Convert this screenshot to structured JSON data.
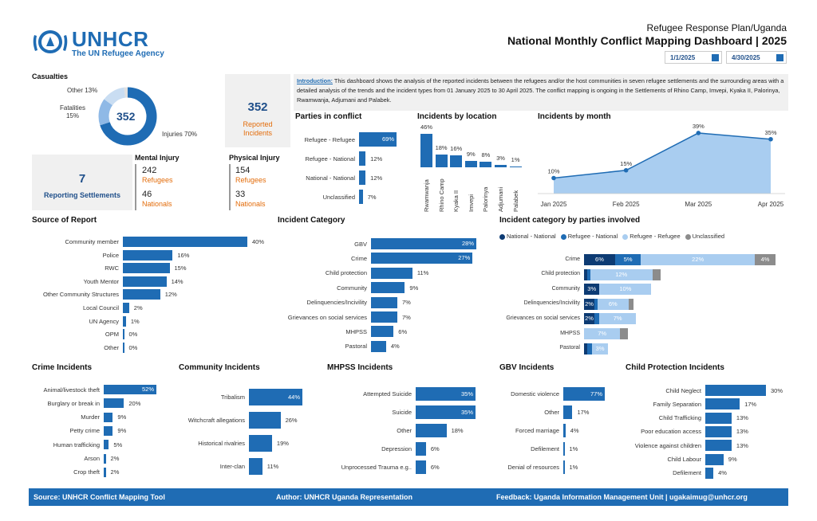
{
  "header": {
    "logo_name": "UNHCR",
    "logo_sub": "The UN Refugee Agency",
    "subtitle": "Refugee Response Plan/Uganda",
    "title": "National Monthly Conflict Mapping Dashboard | 2025",
    "date_start": "1/1/2025",
    "date_end": "4/30/2025"
  },
  "casualties": {
    "title": "Casualties",
    "total": "352",
    "slices": [
      {
        "label": "Injuries 70%",
        "value": 70,
        "color": "#1f6cb4"
      },
      {
        "label": "Fatalities 15%",
        "value": 15,
        "color": "#8fb9e6"
      },
      {
        "label": "Other 13%",
        "value": 13,
        "color": "#c9ddf2"
      }
    ],
    "reported_value": "352",
    "reported_label_1": "Reported",
    "reported_label_2": "Incidents",
    "settlements_value": "7",
    "settlements_label": "Reporting Settlements",
    "mental_title": "Mental Injury",
    "mental_ref_value": "242",
    "mental_ref_label": "Refugees",
    "mental_nat_value": "46",
    "mental_nat_label": "Nationals",
    "physical_title": "Physical Injury",
    "physical_ref_value": "154",
    "physical_ref_label": "Refugees",
    "physical_nat_value": "33",
    "physical_nat_label": "Nationals"
  },
  "intro": {
    "label": "Introduction:",
    "text": " This dashboard shows the analysis of the reported incidents between the refugees and/or the host communities in seven refugee settlements and the surrounding areas with a detailed analysis of the trends and the incident types from 01 January 2025 to 30 April 2025. The conflict mapping is ongoing in the Settlements of Rhino Camp, Imvepi, Kyaka II, Palorinya, Rwamwanja, Adjumani and Palabek."
  },
  "parties": {
    "title": "Parties in conflict",
    "items": [
      {
        "label": "Refugee - Refugee",
        "value": 69,
        "text": "69%"
      },
      {
        "label": "Refugee - National",
        "value": 12,
        "text": "12%"
      },
      {
        "label": "National - National",
        "value": 12,
        "text": "12%"
      },
      {
        "label": "Unclassified",
        "value": 7,
        "text": "7%"
      }
    ]
  },
  "location": {
    "title": "Incidents by location",
    "items": [
      {
        "label": "Rwamwanja",
        "value": 46,
        "text": "46%"
      },
      {
        "label": "Rhino Camp",
        "value": 18,
        "text": "18%"
      },
      {
        "label": "Kyaka II",
        "value": 16,
        "text": "16%"
      },
      {
        "label": "Imvepi",
        "value": 9,
        "text": "9%"
      },
      {
        "label": "Palorinya",
        "value": 8,
        "text": "8%"
      },
      {
        "label": "Adjumani",
        "value": 3,
        "text": "3%"
      },
      {
        "label": "Palabek",
        "value": 1,
        "text": "1%"
      }
    ]
  },
  "chart_data": {
    "type": "area",
    "title": "Incidents by month",
    "x": [
      "Jan 2025",
      "Feb 2025",
      "Mar 2025",
      "Apr 2025"
    ],
    "values": [
      10,
      15,
      39,
      35
    ],
    "labels": [
      "10%",
      "15%",
      "39%",
      "35%"
    ]
  },
  "source": {
    "title": "Source of Report",
    "items": [
      {
        "label": "Community member",
        "value": 40,
        "text": "40%"
      },
      {
        "label": "Police",
        "value": 16,
        "text": "16%"
      },
      {
        "label": "RWC",
        "value": 15,
        "text": "15%"
      },
      {
        "label": "Youth Mentor",
        "value": 14,
        "text": "14%"
      },
      {
        "label": "Other Community Structures",
        "value": 12,
        "text": "12%"
      },
      {
        "label": "Local Council",
        "value": 2,
        "text": "2%"
      },
      {
        "label": "UN Agency",
        "value": 1,
        "text": "1%"
      },
      {
        "label": "OPM",
        "value": 0,
        "text": "0%"
      },
      {
        "label": "Other",
        "value": 0,
        "text": "0%"
      }
    ]
  },
  "category": {
    "title": "Incident Category",
    "items": [
      {
        "label": "GBV",
        "value": 28,
        "text": "28%"
      },
      {
        "label": "Crime",
        "value": 27,
        "text": "27%"
      },
      {
        "label": "Child protection",
        "value": 11,
        "text": "11%"
      },
      {
        "label": "Community",
        "value": 9,
        "text": "9%"
      },
      {
        "label": "Delinquencies/Incivility",
        "value": 7,
        "text": "7%"
      },
      {
        "label": "Grievances on social services",
        "value": 7,
        "text": "7%"
      },
      {
        "label": "MHPSS",
        "value": 6,
        "text": "6%"
      },
      {
        "label": "Pastoral",
        "value": 4,
        "text": "4%"
      }
    ]
  },
  "category_parties": {
    "title": "Incident category by parties involved",
    "legend": [
      {
        "label": "National - National",
        "color": "#0d3b73"
      },
      {
        "label": "Refugee - National",
        "color": "#1f6cb4"
      },
      {
        "label": "Refugee - Refugee",
        "color": "#a9cdf0"
      },
      {
        "label": "Unclassified",
        "color": "#8c8c8c"
      }
    ],
    "rows": [
      {
        "label": "Crime",
        "segs": [
          6,
          5,
          22,
          4
        ],
        "texts": [
          "6%",
          "5%",
          "22%",
          "4%"
        ]
      },
      {
        "label": "Child protection",
        "segs": [
          0.6,
          0.6,
          12,
          1.6
        ],
        "texts": [
          "",
          "",
          "12%",
          ""
        ]
      },
      {
        "label": "Community",
        "segs": [
          3,
          0,
          10,
          0
        ],
        "texts": [
          "3%",
          "",
          "10%",
          ""
        ]
      },
      {
        "label": "Delinquencies/Incivility",
        "segs": [
          2,
          0.6,
          6,
          1
        ],
        "texts": [
          "2%",
          "",
          "6%",
          ""
        ]
      },
      {
        "label": "Grievances on social services",
        "segs": [
          2,
          1,
          7,
          0
        ],
        "texts": [
          "2%",
          "",
          "7%",
          ""
        ]
      },
      {
        "label": "MHPSS",
        "segs": [
          0,
          0,
          7,
          1.5
        ],
        "texts": [
          "",
          "",
          "7%",
          ""
        ]
      },
      {
        "label": "Pastoral",
        "segs": [
          0.6,
          1,
          3,
          0
        ],
        "texts": [
          "",
          "",
          "3%",
          ""
        ]
      }
    ]
  },
  "crime": {
    "title": "Crime Incidents",
    "items": [
      {
        "label": "Animal/livestock theft",
        "value": 52,
        "text": "52%"
      },
      {
        "label": "Burglary or break in",
        "value": 20,
        "text": "20%"
      },
      {
        "label": "Murder",
        "value": 9,
        "text": "9%"
      },
      {
        "label": "Petty crime",
        "value": 9,
        "text": "9%"
      },
      {
        "label": "Human trafficking",
        "value": 5,
        "text": "5%"
      },
      {
        "label": "Arson",
        "value": 2,
        "text": "2%"
      },
      {
        "label": "Crop theft",
        "value": 2,
        "text": "2%"
      }
    ]
  },
  "community": {
    "title": "Community Incidents",
    "items": [
      {
        "label": "Tribalism",
        "value": 44,
        "text": "44%"
      },
      {
        "label": "Witchcraft allegations",
        "value": 26,
        "text": "26%"
      },
      {
        "label": "Historical rivalries",
        "value": 19,
        "text": "19%"
      },
      {
        "label": "Inter-clan",
        "value": 11,
        "text": "11%"
      }
    ]
  },
  "mhpss": {
    "title": "MHPSS Incidents",
    "items": [
      {
        "label": "Attempted Suicide",
        "value": 35,
        "text": "35%"
      },
      {
        "label": "Suicide",
        "value": 35,
        "text": "35%"
      },
      {
        "label": "Other",
        "value": 18,
        "text": "18%"
      },
      {
        "label": "Depression",
        "value": 6,
        "text": "6%"
      },
      {
        "label": "Unprocessed Trauma e.g..",
        "value": 6,
        "text": "6%"
      }
    ]
  },
  "gbv": {
    "title": "GBV Incidents",
    "items": [
      {
        "label": "Domestic violence",
        "value": 77,
        "text": "77%"
      },
      {
        "label": "Other",
        "value": 17,
        "text": "17%"
      },
      {
        "label": "Forced marriage",
        "value": 4,
        "text": "4%"
      },
      {
        "label": "Defilement",
        "value": 1,
        "text": "1%"
      },
      {
        "label": "Denial of resources",
        "value": 1,
        "text": "1%"
      }
    ]
  },
  "child": {
    "title": "Child Protection Incidents",
    "items": [
      {
        "label": "Child Neglect",
        "value": 30,
        "text": "30%"
      },
      {
        "label": "Family Separation",
        "value": 17,
        "text": "17%"
      },
      {
        "label": "Child Trafficking",
        "value": 13,
        "text": "13%"
      },
      {
        "label": "Poor education access",
        "value": 13,
        "text": "13%"
      },
      {
        "label": "Violence against children",
        "value": 13,
        "text": "13%"
      },
      {
        "label": "Child Labour",
        "value": 9,
        "text": "9%"
      },
      {
        "label": "Defilement",
        "value": 4,
        "text": "4%"
      }
    ]
  },
  "footer": {
    "source": "Source: UNHCR Conflict Mapping Tool",
    "author": "Author: UNHCR Uganda Representation",
    "feedback": "Feedback:  Uganda Information Management Unit | ugakaimug@unhcr.org"
  }
}
